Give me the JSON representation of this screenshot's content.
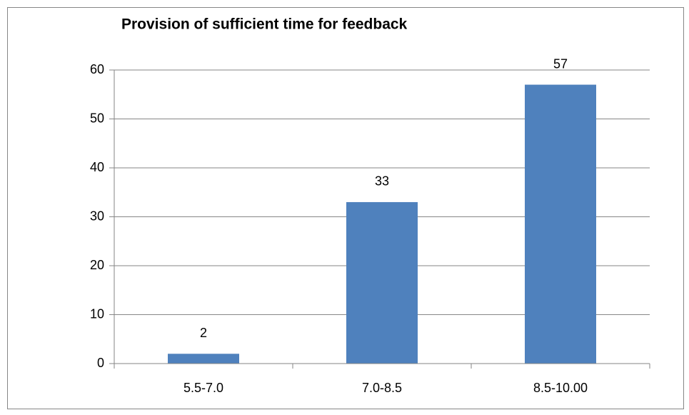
{
  "chart_data": {
    "type": "bar",
    "title": "Provision of sufficient time for feedback",
    "categories": [
      "5.5-7.0",
      "7.0-8.5",
      "8.5-10.00"
    ],
    "values": [
      2,
      33,
      57
    ],
    "color": "#4f81bd",
    "ylim": [
      0,
      60
    ],
    "yticks": [
      0,
      10,
      20,
      30,
      40,
      50,
      60
    ],
    "grid": true
  }
}
